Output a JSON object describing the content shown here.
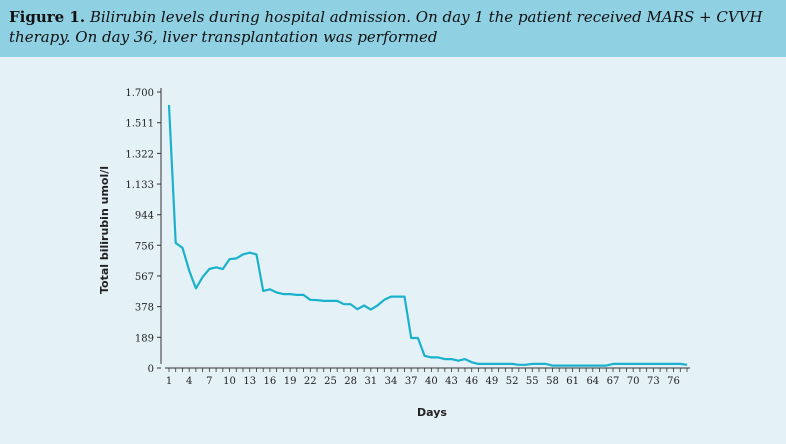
{
  "caption": {
    "label": "Figure 1.",
    "text": "Bilirubin levels during hospital admission. On day 1 the patient received MARS + CVVH therapy. On day 36, liver transplantation was performed"
  },
  "colors": {
    "line": "#1bb1cd",
    "caption_bg": "#8fd0e3",
    "panel_bg": "#e4f2f8"
  },
  "chart_data": {
    "type": "line",
    "title": "",
    "xlabel": "Days",
    "ylabel": "Total bilirubin umol/l",
    "xlim": [
      1,
      78
    ],
    "ylim": [
      0,
      1700
    ],
    "yticks": [
      0,
      189,
      378,
      567,
      756,
      944,
      1133,
      1322,
      1511,
      1700
    ],
    "ytick_labels": [
      "0",
      "189",
      "378",
      "567",
      "756",
      "944",
      "1.133",
      "1.322",
      "1.511",
      "1.700"
    ],
    "xticks": [
      1,
      4,
      7,
      10,
      13,
      16,
      19,
      22,
      25,
      28,
      31,
      34,
      37,
      40,
      43,
      46,
      49,
      52,
      55,
      58,
      61,
      64,
      67,
      70,
      73,
      76
    ],
    "grid": false,
    "series": [
      {
        "x": [
          1,
          2,
          3,
          4,
          5,
          6,
          7,
          8,
          9,
          10,
          11,
          12,
          13,
          14,
          15,
          16,
          17,
          18,
          19,
          20,
          21,
          22,
          23,
          24,
          25,
          26,
          27,
          28,
          29,
          30,
          31,
          32,
          33,
          34,
          35,
          36,
          37,
          38,
          39,
          40,
          41,
          42,
          43,
          44,
          45,
          46,
          47,
          48,
          49,
          50,
          51,
          52,
          53,
          54,
          55,
          56,
          57,
          58,
          59,
          60,
          61,
          62,
          63,
          64,
          65,
          66,
          67,
          68,
          69,
          70,
          71,
          72,
          73,
          74,
          75,
          76,
          77,
          78
        ],
        "y": [
          1620,
          770,
          740,
          600,
          490,
          560,
          610,
          620,
          610,
          670,
          675,
          700,
          710,
          700,
          475,
          485,
          465,
          455,
          455,
          450,
          450,
          420,
          418,
          413,
          413,
          413,
          393,
          393,
          362,
          385,
          360,
          385,
          420,
          440,
          440,
          440,
          185,
          185,
          75,
          65,
          65,
          55,
          55,
          45,
          55,
          35,
          25,
          25,
          25,
          25,
          25,
          25,
          20,
          20,
          25,
          25,
          25,
          15,
          15,
          15,
          15,
          15,
          15,
          15,
          15,
          15,
          25,
          25,
          25,
          25,
          25,
          25,
          25,
          25,
          25,
          25,
          25,
          20
        ]
      }
    ]
  }
}
